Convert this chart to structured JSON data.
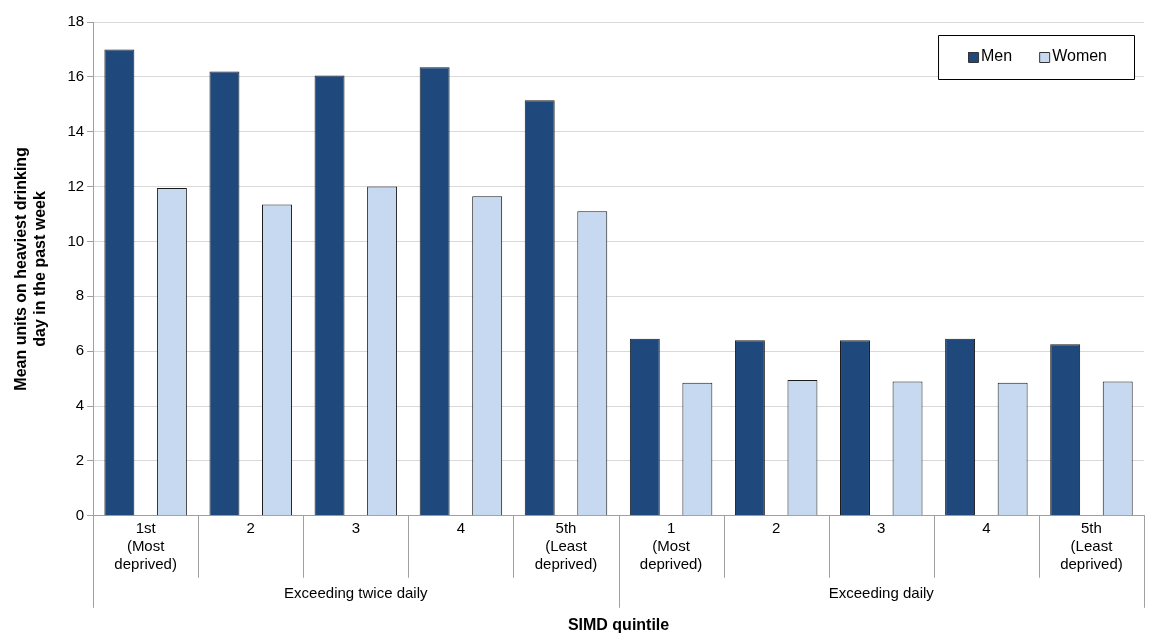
{
  "chart_data": {
    "type": "bar",
    "xlabel": "SIMD quintile",
    "ylabel": "Mean units on heaviest drinking day in the past week",
    "categories": [
      "1st (Most deprived)",
      "2",
      "3",
      "4",
      "5th (Least deprived)",
      "1 (Most deprived)",
      "2",
      "3",
      "4",
      "5th (Least deprived)"
    ],
    "series": [
      {
        "name": "Men",
        "color": "#1f497d",
        "values": [
          17.0,
          16.2,
          16.05,
          16.35,
          15.15,
          6.45,
          6.4,
          6.4,
          6.45,
          6.25
        ]
      },
      {
        "name": "Women",
        "color": "#c6d9f0",
        "values": [
          11.95,
          11.35,
          12.0,
          11.65,
          11.1,
          4.85,
          4.95,
          4.9,
          4.85,
          4.9
        ]
      }
    ],
    "annotations": [
      "Exceeding twice daily",
      "Exceeding daily"
    ],
    "ylim": [
      0,
      18
    ],
    "yticks": [
      0,
      2,
      4,
      6,
      8,
      10,
      12,
      14,
      16,
      18
    ],
    "grid": "y",
    "legend": "top right"
  }
}
